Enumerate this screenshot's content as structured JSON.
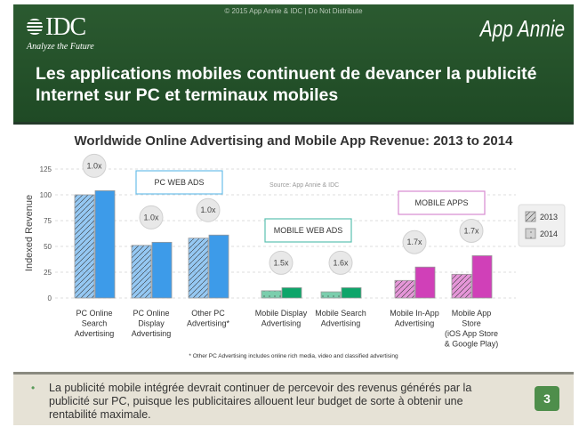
{
  "header": {
    "copyright": "© 2015 App Annie & IDC | Do Not Distribute",
    "idc_logo": "IDC",
    "idc_tagline": "Analyze the Future",
    "appannie_logo": "App Annie",
    "title_line1": "Les applications mobiles continuent de devancer la publicité",
    "title_line2": "Internet sur PC et terminaux mobiles"
  },
  "chart_data": {
    "type": "bar",
    "title": "Worldwide Online Advertising and Mobile App Revenue: 2013 to 2014",
    "ylabel": "Indexed Revenue",
    "ylim": [
      0,
      125
    ],
    "yticks": [
      "0",
      "25",
      "50",
      "75",
      "100",
      "125"
    ],
    "grid": true,
    "categories": [
      "PC Online Search Advertising",
      "PC Online Display Advertising",
      "Other PC Advertising*",
      "Mobile Display Advertising",
      "Mobile Search Advertising",
      "Mobile In-App Advertising",
      "Mobile App Store (iOS App Store & Google Play)"
    ],
    "category_lines": [
      [
        "PC Online",
        "Search",
        "Advertising"
      ],
      [
        "PC Online",
        "Display",
        "Advertising"
      ],
      [
        "Other PC",
        "Advertising*"
      ],
      [
        "Mobile Display",
        "Advertising"
      ],
      [
        "Mobile Search",
        "Advertising"
      ],
      [
        "Mobile In-App",
        "Advertising"
      ],
      [
        "Mobile App",
        "Store",
        "(iOS App Store",
        "& Google Play)"
      ]
    ],
    "series": [
      {
        "name": "2013",
        "values": [
          100,
          51,
          58,
          7,
          6,
          17,
          23
        ]
      },
      {
        "name": "2014",
        "values": [
          104,
          54,
          61,
          10,
          10,
          30,
          41
        ]
      }
    ],
    "multipliers": [
      "1.0x",
      "1.0x",
      "1.0x",
      "1.5x",
      "1.6x",
      "1.7x",
      "1.7x"
    ],
    "colors": [
      "#3d9be9",
      "#3d9be9",
      "#3d9be9",
      "#0ea56a",
      "#0ea56a",
      "#d040b8",
      "#d040b8"
    ],
    "groups": [
      {
        "label": "PC WEB ADS",
        "color": "#6bbfe8"
      },
      {
        "label": "MOBILE WEB ADS",
        "color": "#5ac0b0"
      },
      {
        "label": "MOBILE APPS",
        "color": "#d78ad0"
      }
    ],
    "source": "Source: App Annie & IDC",
    "legend_position": "right",
    "footnote": "* Other PC Advertising includes online rich media, video and classified advertising"
  },
  "footer": {
    "bullet": "•",
    "text": "La publicité mobile intégrée devrait continuer de percevoir des revenus générés par la publicité sur PC, puisque les publicitaires allouent leur budget de sorte à obtenir une rentabilité maximale.",
    "page": "3"
  }
}
